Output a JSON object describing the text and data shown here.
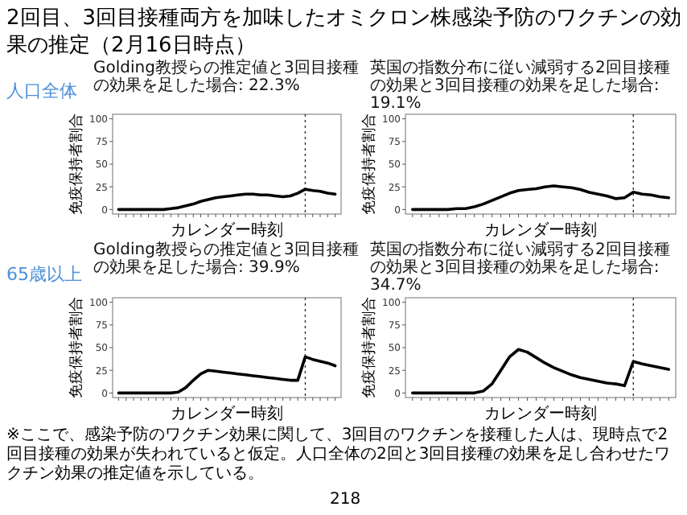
{
  "chart_data": [
    {
      "type": "line",
      "title": "Golding教授らの推定値と3回目接種の効果を足した場合: 22.3%",
      "xlabel": "カレンダー時刻",
      "ylabel": "免疫保持者割合",
      "annotations": [
        "2回目、3回目接種両方を加味したオミクロン株感染予防のワクチンの効果の推定（2月16日時点）",
        "人口全体"
      ],
      "categories": [
        null,
        null,
        null,
        null,
        null,
        null,
        null,
        null,
        null,
        null,
        null,
        null,
        null,
        null,
        null,
        null,
        null,
        null,
        null,
        null,
        null,
        null,
        null,
        null,
        null,
        null,
        null,
        null,
        null,
        null
      ],
      "values": [
        0,
        0,
        0,
        0,
        0,
        0,
        0,
        1,
        2,
        4,
        6,
        9,
        11,
        13,
        14,
        15,
        16,
        17,
        17,
        16,
        16,
        15,
        14,
        15,
        18,
        22.3,
        21,
        20,
        18,
        17
      ],
      "color": "#000000",
      "ylim": [
        -5,
        105
      ],
      "yticks": [
        0,
        25,
        50,
        75,
        100
      ],
      "tick_labels": "y"
    },
    {
      "type": "line",
      "title": "英国の指数分布に従い減弱する2回目接種の効果と3回目接種の効果を足した場合: 19.1%",
      "xlabel": "カレンダー時刻",
      "ylabel": "免疫保持者割合",
      "categories": [
        null,
        null,
        null,
        null,
        null,
        null,
        null,
        null,
        null,
        null,
        null,
        null,
        null,
        null,
        null,
        null,
        null,
        null,
        null,
        null,
        null,
        null,
        null,
        null,
        null,
        null,
        null,
        null,
        null,
        null
      ],
      "values": [
        0,
        0,
        0,
        0,
        0,
        1,
        1,
        3,
        6,
        10,
        14,
        18,
        21,
        22,
        23,
        25,
        26,
        25,
        24,
        22,
        19,
        17,
        15,
        12,
        13,
        19.1,
        17,
        16,
        14,
        13
      ],
      "color": "#000000",
      "ylim": [
        -5,
        105
      ],
      "yticks": [
        0,
        25,
        50,
        75,
        100
      ],
      "tick_labels": "y"
    },
    {
      "type": "line",
      "title": "Golding教授らの推定値と3回目接種の効果を足した場合: 39.9%",
      "xlabel": "カレンダー時刻",
      "ylabel": "免疫保持者割合",
      "annotations": [
        "65歳以上"
      ],
      "categories": [
        null,
        null,
        null,
        null,
        null,
        null,
        null,
        null,
        null,
        null,
        null,
        null,
        null,
        null,
        null,
        null,
        null,
        null,
        null,
        null,
        null,
        null,
        null,
        null,
        null,
        null,
        null,
        null,
        null,
        null
      ],
      "values": [
        0,
        0,
        0,
        0,
        0,
        0,
        0,
        0,
        1,
        6,
        14,
        21,
        25,
        24,
        23,
        22,
        21,
        20,
        19,
        18,
        17,
        16,
        15,
        14,
        14,
        39.9,
        37,
        35,
        33,
        30
      ],
      "color": "#000000",
      "ylim": [
        -5,
        105
      ],
      "yticks": [
        0,
        25,
        50,
        75,
        100
      ],
      "tick_labels": "y"
    },
    {
      "type": "line",
      "title": "英国の指数分布に従い減弱する2回目接種の効果と3回目接種の効果を足した場合: 34.7%",
      "xlabel": "カレンダー時刻",
      "ylabel": "免疫保持者割合",
      "annotations": [
        "※ここで、感染予防のワクチン効果に関して、3回目のワクチンを接種した人は、現時点で2回目接種の効果が失われていると仮定。人口全体の2回と3回目接種の効果を足し合わせたワクチン効果の推定値を示している。",
        "218"
      ],
      "categories": [
        null,
        null,
        null,
        null,
        null,
        null,
        null,
        null,
        null,
        null,
        null,
        null,
        null,
        null,
        null,
        null,
        null,
        null,
        null,
        null,
        null,
        null,
        null,
        null,
        null,
        null,
        null,
        null,
        null,
        null
      ],
      "values": [
        0,
        0,
        0,
        0,
        0,
        0,
        0,
        0,
        2,
        10,
        25,
        40,
        48,
        45,
        39,
        33,
        28,
        24,
        20,
        17,
        15,
        13,
        11,
        10,
        8,
        34.7,
        32,
        30,
        28,
        26
      ],
      "color": "#000000",
      "ylim": [
        -5,
        105
      ],
      "yticks": [
        0,
        25,
        50,
        75,
        100
      ],
      "tick_labels": "y"
    }
  ]
}
